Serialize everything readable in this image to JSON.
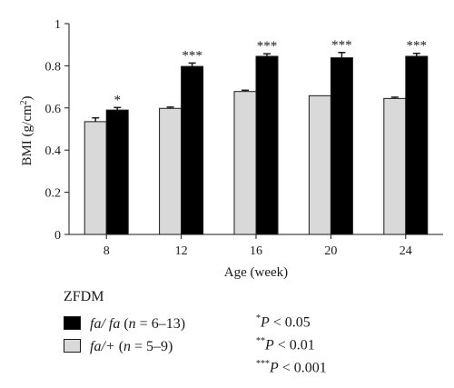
{
  "chart_data": {
    "type": "bar",
    "categories": [
      "8",
      "12",
      "16",
      "20",
      "24"
    ],
    "series": [
      {
        "name": "fa/+ (n = 5–9)",
        "color": "#d9d9d9",
        "values": [
          0.535,
          0.598,
          0.678,
          0.658,
          0.645
        ],
        "errors": [
          0.018,
          0.006,
          0.006,
          0.0,
          0.006
        ]
      },
      {
        "name": "fa/ fa (n = 6–13)",
        "color": "#000000",
        "values": [
          0.59,
          0.797,
          0.845,
          0.838,
          0.845
        ],
        "errors": [
          0.012,
          0.016,
          0.012,
          0.025,
          0.014
        ]
      }
    ],
    "significance": [
      "*",
      "***",
      "***",
      "***",
      "***"
    ],
    "xlabel": "Age (week)",
    "ylabel_main": "BMI (g/cm",
    "ylabel_sup": "2",
    "ylabel_close": ")",
    "ylim": [
      0,
      1
    ],
    "yticks": [
      "0",
      "0.2",
      "0.4",
      "0.6",
      "0.8",
      "1"
    ],
    "ytick_values": [
      0,
      0.2,
      0.4,
      0.6,
      0.8,
      1.0
    ],
    "grid": false,
    "legend_position": "bottom-left"
  },
  "legend": {
    "title": "ZFDM",
    "entries": [
      {
        "genotype": "fa/ fa",
        "n_label": "n",
        "n_range": " = 6–13)",
        "color": "#000000"
      },
      {
        "genotype": "fa/+",
        "n_label": "n",
        "n_range": " = 5–9)",
        "color": "#d9d9d9"
      }
    ]
  },
  "notes": [
    {
      "stars": "*",
      "p": "P",
      "rest": " < 0.05"
    },
    {
      "stars": "**",
      "p": "P",
      "rest": " < 0.01"
    },
    {
      "stars": "***",
      "p": "P",
      "rest": " < 0.001"
    }
  ]
}
